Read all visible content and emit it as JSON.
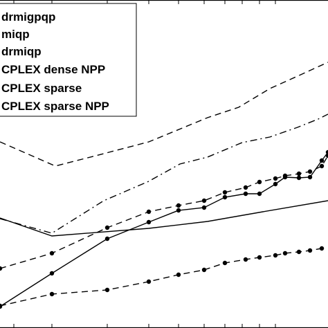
{
  "chart_data": {
    "type": "line",
    "title": "",
    "xlabel": "",
    "ylabel": "",
    "grid": false,
    "legend_position": "top-left",
    "series": [
      {
        "name": "drmigpqp",
        "style": "solid",
        "markers": false,
        "points": [
          [
            0,
            315
          ],
          [
            75,
            341
          ],
          [
            215,
            330
          ],
          [
            300,
            320
          ],
          [
            380,
            306
          ],
          [
            474,
            290
          ]
        ]
      },
      {
        "name": "miqp",
        "style": "dashed",
        "markers": false,
        "points": [
          [
            0,
            205
          ],
          [
            80,
            240
          ],
          [
            150,
            222
          ],
          [
            215,
            205
          ],
          [
            300,
            170
          ],
          [
            345,
            155
          ],
          [
            390,
            128
          ],
          [
            430,
            110
          ],
          [
            474,
            90
          ]
        ]
      },
      {
        "name": "drmiqp",
        "style": "dashdot",
        "markers": false,
        "points": [
          [
            0,
            316
          ],
          [
            75,
            337
          ],
          [
            150,
            290
          ],
          [
            215,
            262
          ],
          [
            260,
            237
          ],
          [
            300,
            227
          ],
          [
            350,
            206
          ],
          [
            390,
            198
          ],
          [
            430,
            184
          ],
          [
            460,
            172
          ],
          [
            474,
            165
          ]
        ]
      },
      {
        "name": "CPLEX dense NPP",
        "style": "solid",
        "markers": true,
        "points": [
          [
            0,
            443
          ],
          [
            75,
            395
          ],
          [
            155,
            345
          ],
          [
            215,
            321
          ],
          [
            258,
            304
          ],
          [
            295,
            300
          ],
          [
            325,
            285
          ],
          [
            355,
            280
          ],
          [
            375,
            280
          ],
          [
            398,
            266
          ],
          [
            412,
            256
          ],
          [
            432,
            257
          ],
          [
            448,
            256
          ],
          [
            465,
            232
          ],
          [
            474,
            220
          ]
        ]
      },
      {
        "name": "CPLEX sparse",
        "style": "dashed",
        "markers": true,
        "points": [
          [
            0,
            388
          ],
          [
            75,
            366
          ],
          [
            155,
            329
          ],
          [
            215,
            306
          ],
          [
            258,
            297
          ],
          [
            295,
            290
          ],
          [
            325,
            278
          ],
          [
            355,
            271
          ],
          [
            375,
            263
          ],
          [
            398,
            258
          ],
          [
            412,
            254
          ],
          [
            432,
            251
          ],
          [
            448,
            248
          ],
          [
            465,
            240
          ],
          [
            474,
            225
          ]
        ]
      },
      {
        "name": "CPLEX sparse NPP",
        "style": "dashed",
        "markers": true,
        "points": [
          [
            0,
            442
          ],
          [
            75,
            425
          ],
          [
            155,
            419
          ],
          [
            215,
            407
          ],
          [
            258,
            397
          ],
          [
            295,
            390
          ],
          [
            325,
            380
          ],
          [
            355,
            375
          ],
          [
            375,
            372
          ],
          [
            398,
            369
          ],
          [
            412,
            366
          ],
          [
            432,
            364
          ],
          [
            448,
            362
          ],
          [
            465,
            359
          ]
        ]
      }
    ],
    "top_ticks": [
      20,
      75,
      155,
      215,
      258,
      295,
      325,
      350,
      375,
      398
    ],
    "bottom_ticks": [
      20,
      75,
      155,
      215,
      258,
      295,
      325,
      350,
      375,
      398
    ],
    "legend": [
      "drmigpqp",
      "miqp",
      "drmiqp",
      "CPLEX dense NPP",
      "CPLEX sparse",
      "CPLEX sparse NPP"
    ]
  }
}
